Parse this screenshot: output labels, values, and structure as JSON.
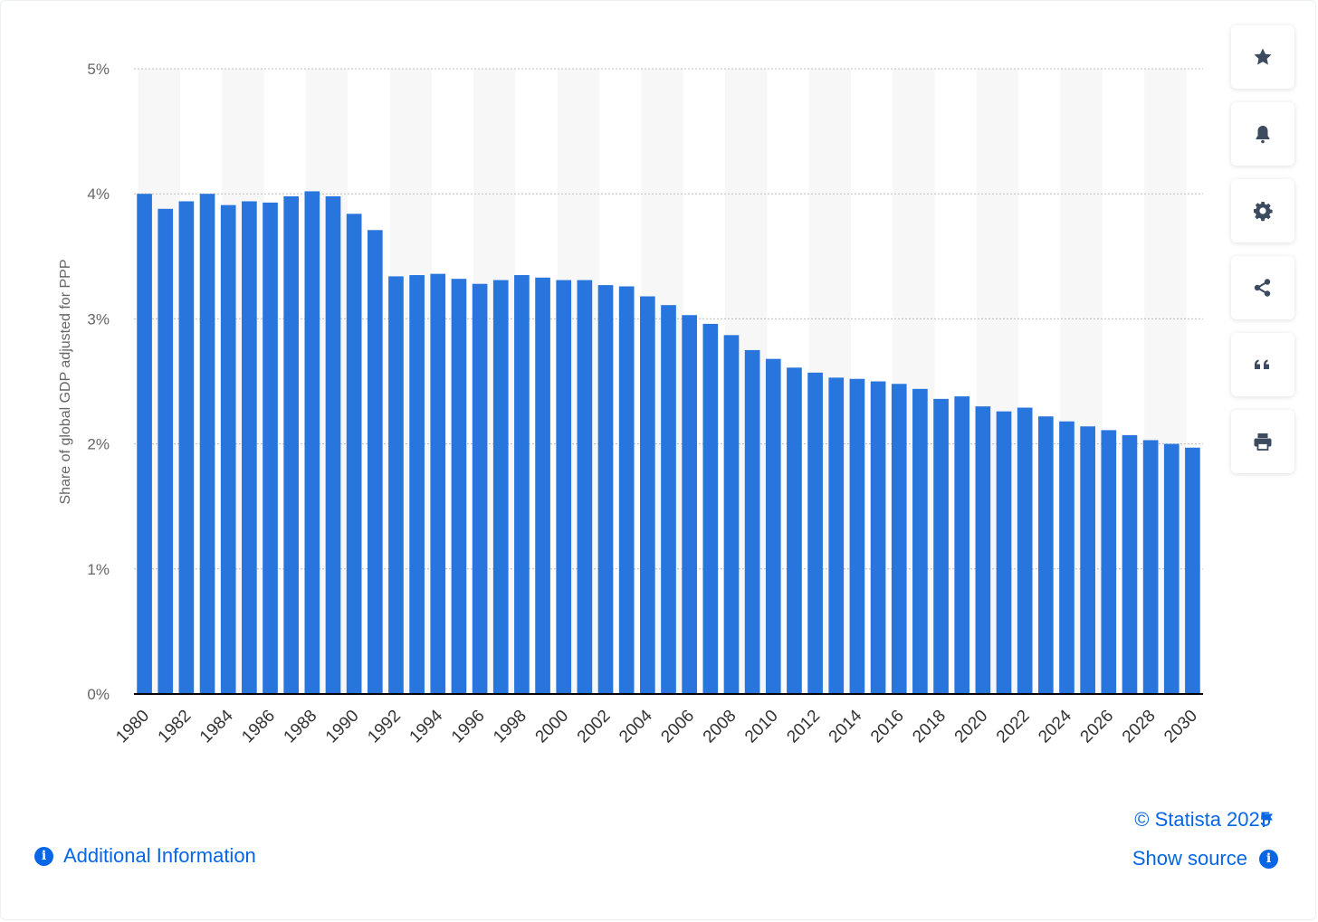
{
  "chart_data": {
    "type": "bar",
    "categories": [
      "1980",
      "1981",
      "1982",
      "1983",
      "1984",
      "1985",
      "1986",
      "1987",
      "1988",
      "1989",
      "1990",
      "1991",
      "1992",
      "1993",
      "1994",
      "1995",
      "1996",
      "1997",
      "1998",
      "1999",
      "2000",
      "2001",
      "2002",
      "2003",
      "2004",
      "2005",
      "2006",
      "2007",
      "2008",
      "2009",
      "2010",
      "2011",
      "2012",
      "2013",
      "2014",
      "2015",
      "2016",
      "2017",
      "2018",
      "2019",
      "2020",
      "2021",
      "2022",
      "2023",
      "2024",
      "2025",
      "2026",
      "2027",
      "2028",
      "2029",
      "2030"
    ],
    "x_tick_labels": [
      "1980",
      "1982",
      "1984",
      "1986",
      "1988",
      "1990",
      "1992",
      "1994",
      "1996",
      "1998",
      "2000",
      "2002",
      "2004",
      "2006",
      "2008",
      "2010",
      "2012",
      "2014",
      "2016",
      "2018",
      "2020",
      "2022",
      "2024",
      "2026",
      "2028",
      "2030"
    ],
    "values": [
      4.0,
      3.88,
      3.94,
      4.0,
      3.91,
      3.94,
      3.93,
      3.98,
      4.02,
      3.98,
      3.84,
      3.71,
      3.34,
      3.35,
      3.36,
      3.32,
      3.28,
      3.31,
      3.35,
      3.33,
      3.31,
      3.31,
      3.27,
      3.26,
      3.18,
      3.11,
      3.03,
      2.96,
      2.87,
      2.75,
      2.68,
      2.61,
      2.57,
      2.53,
      2.52,
      2.5,
      2.48,
      2.44,
      2.36,
      2.38,
      2.3,
      2.26,
      2.29,
      2.22,
      2.18,
      2.14,
      2.11,
      2.07,
      2.03,
      2.0,
      1.97
    ],
    "ylabel": "Share of global GDP adjusted for PPP",
    "ylim": [
      0,
      5
    ],
    "y_ticks": [
      "0%",
      "1%",
      "2%",
      "3%",
      "4%",
      "5%"
    ],
    "grid": "dotted horizontal",
    "bar_color": "#2876dd",
    "band_color": "#f7f7f7"
  },
  "toolbar": {
    "buttons": [
      {
        "name": "favorite-button",
        "icon": "star-icon"
      },
      {
        "name": "notification-button",
        "icon": "bell-icon"
      },
      {
        "name": "settings-button",
        "icon": "gear-icon"
      },
      {
        "name": "share-button",
        "icon": "share-icon"
      },
      {
        "name": "cite-button",
        "icon": "quote-icon"
      },
      {
        "name": "print-button",
        "icon": "printer-icon"
      }
    ],
    "icon_color": "#3c4b5f"
  },
  "footer": {
    "additional_info": "Additional Information",
    "credit": "© Statista 2025",
    "show_source": "Show source",
    "link_color": "#0666e5"
  }
}
